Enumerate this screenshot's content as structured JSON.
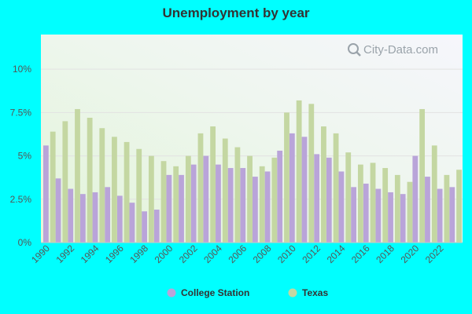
{
  "chart_data": {
    "type": "bar",
    "title": "Unemployment by year",
    "xlabel": "",
    "ylabel": "",
    "ylim": [
      0,
      12
    ],
    "y_ticks": [
      0,
      2.5,
      5,
      7.5,
      10
    ],
    "y_tick_labels": [
      "0%",
      "2.5%",
      "5%",
      "7.5%",
      "10%"
    ],
    "x_tick_labels": [
      "1990",
      "1992",
      "1994",
      "1996",
      "1998",
      "2000",
      "2002",
      "2004",
      "2006",
      "2008",
      "2010",
      "2012",
      "2014",
      "2016",
      "2018",
      "2020",
      "2022"
    ],
    "grid": true,
    "legend_position": "bottom-center",
    "categories": [
      "1990",
      "1991",
      "1992",
      "1993",
      "1994",
      "1995",
      "1996",
      "1997",
      "1998",
      "1999",
      "2000",
      "2001",
      "2002",
      "2003",
      "2004",
      "2005",
      "2006",
      "2007",
      "2008",
      "2009",
      "2010",
      "2011",
      "2012",
      "2013",
      "2014",
      "2015",
      "2016",
      "2017",
      "2018",
      "2019",
      "2020",
      "2021",
      "2022",
      "2023"
    ],
    "series": [
      {
        "name": "College Station",
        "color": "#b9a4d9",
        "values": [
          5.6,
          3.7,
          3.1,
          2.8,
          2.9,
          3.2,
          2.7,
          2.3,
          1.8,
          1.9,
          3.9,
          3.9,
          4.5,
          5.0,
          4.5,
          4.3,
          4.3,
          3.8,
          4.1,
          5.3,
          6.3,
          6.1,
          5.1,
          4.9,
          4.1,
          3.2,
          3.4,
          3.1,
          2.9,
          2.8,
          5.0,
          3.8,
          3.1,
          3.2
        ]
      },
      {
        "name": "Texas",
        "color": "#c4d7a2",
        "values": [
          6.4,
          7.0,
          7.7,
          7.2,
          6.6,
          6.1,
          5.8,
          5.4,
          5.0,
          4.7,
          4.4,
          5.0,
          6.3,
          6.7,
          6.0,
          5.5,
          5.0,
          4.4,
          4.9,
          7.5,
          8.2,
          8.0,
          6.7,
          6.3,
          5.2,
          4.5,
          4.6,
          4.3,
          3.9,
          3.5,
          7.7,
          5.6,
          3.9,
          4.2
        ]
      }
    ]
  },
  "watermark": {
    "text": "City-Data.com",
    "icon": "magnifier-icon"
  }
}
